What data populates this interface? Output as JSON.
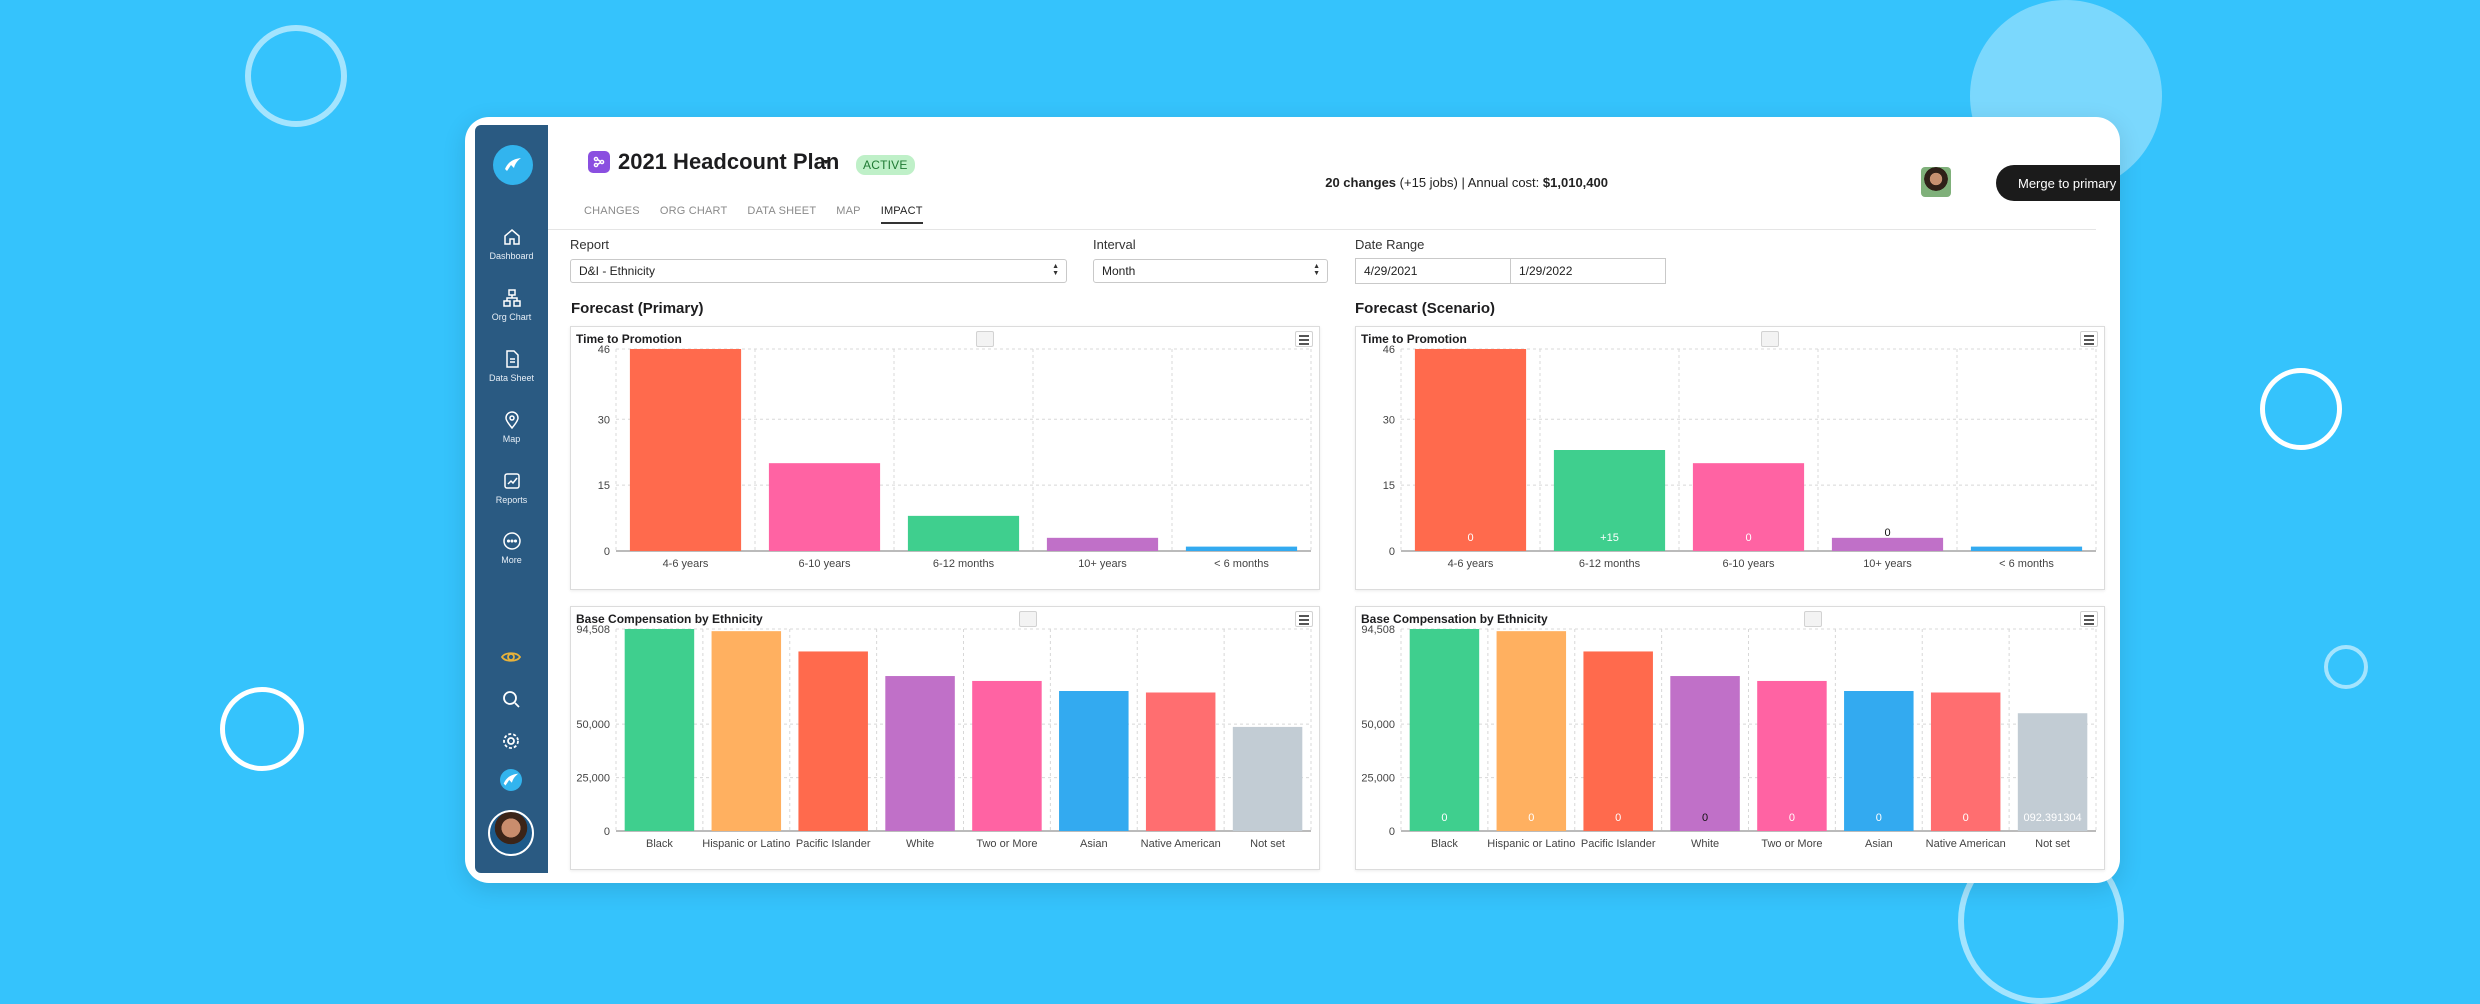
{
  "app": {
    "plan_title": "2021 Headcount Plan",
    "status_badge": "ACTIVE",
    "summary": {
      "changes": "20 changes",
      "jobs": "(+15 jobs)",
      "sep": "| Annual cost:",
      "cost": "$1,010,400"
    },
    "merge_button": "Merge to primary"
  },
  "sidebar": {
    "items": [
      {
        "label": "Dashboard",
        "icon": "home-icon"
      },
      {
        "label": "Org Chart",
        "icon": "org-chart-icon"
      },
      {
        "label": "Data Sheet",
        "icon": "document-icon"
      },
      {
        "label": "Map",
        "icon": "map-pin-icon"
      },
      {
        "label": "Reports",
        "icon": "reports-chart-icon"
      },
      {
        "label": "More",
        "icon": "more-icon"
      }
    ],
    "bottom_icons": [
      "eye-icon",
      "search-icon",
      "gear-icon",
      "app-logo-icon",
      "avatar"
    ]
  },
  "tabs": [
    "CHANGES",
    "ORG CHART",
    "DATA SHEET",
    "MAP",
    "IMPACT"
  ],
  "active_tab": "IMPACT",
  "filters": {
    "report_label": "Report",
    "report_value": "D&I - Ethnicity",
    "interval_label": "Interval",
    "interval_value": "Month",
    "date_range_label": "Date Range",
    "date_start": "4/29/2021",
    "date_end": "1/29/2022"
  },
  "sections": {
    "primary": "Forecast (Primary)",
    "scenario": "Forecast (Scenario)"
  },
  "colors": {
    "background": "#35c3fc",
    "sidebar": "#2a5a82",
    "bar_orange": "#ff6a4d",
    "bar_pink": "#ff63a3",
    "bar_green": "#3fcf8e",
    "bar_purple": "#c070c8",
    "bar_blue": "#33aaf0",
    "bar_peach": "#ffb060",
    "bar_coral": "#ff6e70",
    "bar_gray": "#c2ccd4"
  },
  "chart_data": [
    {
      "id": "primary-promotion",
      "type": "bar",
      "title": "Time to Promotion",
      "categories": [
        "4-6 years",
        "6-10 years",
        "6-12 months",
        "10+ years",
        "< 6 months"
      ],
      "values": [
        46,
        20,
        8,
        3,
        1
      ],
      "colors": [
        "#ff6a4d",
        "#ff63a3",
        "#3fcf8e",
        "#c070c8",
        "#33aaf0"
      ],
      "ylim": [
        0,
        46
      ],
      "yticks": [
        0,
        15,
        30,
        46
      ],
      "ytick_labels": [
        "0",
        "15",
        "30",
        "46"
      ],
      "data_labels": [
        "",
        "",
        "",
        "",
        ""
      ],
      "grid": true
    },
    {
      "id": "scenario-promotion",
      "type": "bar",
      "title": "Time to Promotion",
      "categories": [
        "4-6 years",
        "6-12 months",
        "6-10 years",
        "10+ years",
        "< 6 months"
      ],
      "values": [
        46,
        23,
        20,
        3,
        1
      ],
      "colors": [
        "#ff6a4d",
        "#3fcf8e",
        "#ff63a3",
        "#c070c8",
        "#33aaf0"
      ],
      "ylim": [
        0,
        46
      ],
      "yticks": [
        0,
        15,
        30,
        46
      ],
      "ytick_labels": [
        "0",
        "15",
        "30",
        "46"
      ],
      "data_labels": [
        "0",
        "+15",
        "0",
        "0",
        ""
      ],
      "grid": true
    },
    {
      "id": "primary-compensation",
      "type": "bar",
      "title": "Base Compensation by Ethnicity",
      "categories": [
        "Black",
        "Hispanic or Latino",
        "Pacific Islander",
        "White",
        "Two or More",
        "Asian",
        "Native American",
        "Not set"
      ],
      "values": [
        94508,
        93500,
        84000,
        72500,
        70200,
        65500,
        64800,
        48700
      ],
      "colors": [
        "#3fcf8e",
        "#ffb060",
        "#ff6a4d",
        "#c070c8",
        "#ff63a3",
        "#33aaf0",
        "#ff6e70",
        "#c2ccd4"
      ],
      "ylim": [
        0,
        94508
      ],
      "yticks": [
        0,
        25000,
        50000,
        94508
      ],
      "ytick_labels": [
        "0",
        "25,000",
        "50,000",
        "94,508"
      ],
      "data_labels": [
        "",
        "",
        "",
        "",
        "",
        "",
        "",
        ""
      ],
      "grid": true
    },
    {
      "id": "scenario-compensation",
      "type": "bar",
      "title": "Base Compensation by Ethnicity",
      "categories": [
        "Black",
        "Hispanic or Latino",
        "Pacific Islander",
        "White",
        "Two or More",
        "Asian",
        "Native American",
        "Not set"
      ],
      "values": [
        94508,
        93500,
        84000,
        72500,
        70200,
        65500,
        64800,
        55100
      ],
      "colors": [
        "#3fcf8e",
        "#ffb060",
        "#ff6a4d",
        "#c070c8",
        "#ff63a3",
        "#33aaf0",
        "#ff6e70",
        "#c2ccd4"
      ],
      "ylim": [
        0,
        94508
      ],
      "yticks": [
        0,
        25000,
        50000,
        94508
      ],
      "ytick_labels": [
        "0",
        "25,000",
        "50,000",
        "94,508"
      ],
      "data_labels": [
        "0",
        "0",
        "0",
        "0",
        "0",
        "0",
        "0",
        "092.391304"
      ],
      "grid": true
    }
  ]
}
